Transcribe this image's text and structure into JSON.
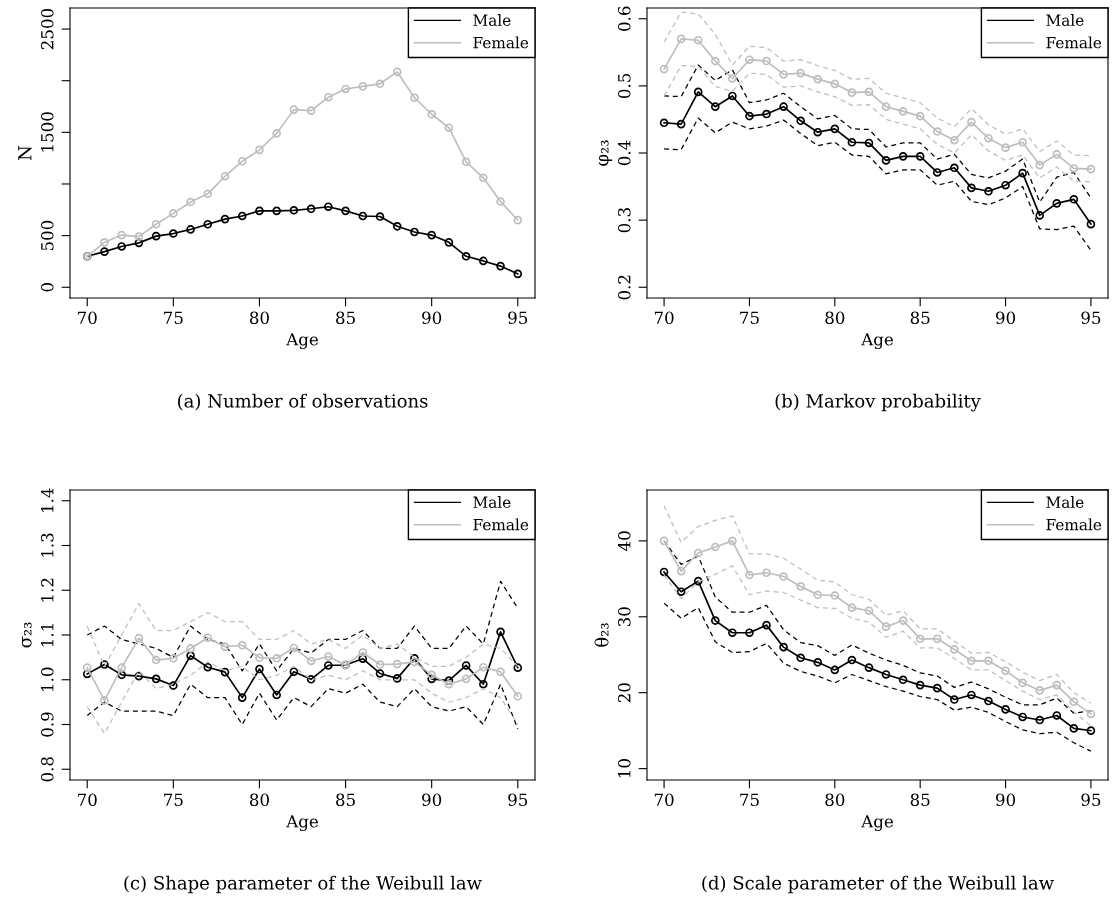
{
  "chart_data": [
    {
      "type": "line",
      "xlabel": "Age",
      "ylabel": "N",
      "annotations": [
        "(a) Number of observations"
      ],
      "x": [
        70,
        71,
        72,
        73,
        74,
        75,
        76,
        77,
        78,
        79,
        80,
        81,
        82,
        83,
        84,
        85,
        86,
        87,
        88,
        89,
        90,
        91,
        92,
        93,
        94,
        95
      ],
      "xlim": [
        69,
        96
      ],
      "xticks": [
        70,
        75,
        80,
        85,
        90,
        95
      ],
      "ylim": [
        -104,
        2704
      ],
      "yticks": [
        0,
        500,
        {
          "value": 1000,
          "label": null
        },
        1500,
        {
          "value": 2000,
          "label": null
        },
        2500
      ],
      "grid": false,
      "legend": "top right",
      "marker": "circle",
      "line_style": "solid",
      "series": [
        {
          "name": "Male",
          "color": "#000000",
          "values": [
            300,
            345,
            395,
            430,
            495,
            520,
            560,
            610,
            660,
            690,
            740,
            740,
            745,
            760,
            780,
            740,
            690,
            685,
            590,
            535,
            505,
            435,
            300,
            255,
            205,
            130
          ]
        },
        {
          "name": "Female",
          "color": "#bebebe",
          "values": [
            300,
            435,
            505,
            490,
            610,
            715,
            825,
            905,
            1075,
            1220,
            1330,
            1490,
            1720,
            1710,
            1840,
            1920,
            1945,
            1970,
            2085,
            1835,
            1675,
            1545,
            1215,
            1060,
            830,
            650
          ]
        }
      ]
    },
    {
      "type": "line",
      "xlabel": "Age",
      "ylabel": "φ₂₃",
      "annotations": [
        "(b) Markov probability"
      ],
      "x": [
        70,
        71,
        72,
        73,
        74,
        75,
        76,
        77,
        78,
        79,
        80,
        81,
        82,
        83,
        84,
        85,
        86,
        87,
        88,
        89,
        90,
        91,
        92,
        93,
        94,
        95
      ],
      "xlim": [
        69,
        96
      ],
      "xticks": [
        70,
        75,
        80,
        85,
        90,
        95
      ],
      "ylim": [
        0.184,
        0.616
      ],
      "yticks": [
        0.2,
        0.3,
        0.4,
        0.5,
        0.6
      ],
      "grid": false,
      "legend": "top right",
      "marker": "circle",
      "line_style": "solid",
      "series": [
        {
          "name": "Male",
          "color": "#000000",
          "values": [
            0.445,
            0.443,
            0.491,
            0.469,
            0.485,
            0.455,
            0.458,
            0.469,
            0.448,
            0.431,
            0.436,
            0.416,
            0.415,
            0.389,
            0.395,
            0.395,
            0.371,
            0.378,
            0.348,
            0.343,
            0.352,
            0.37,
            0.307,
            0.325,
            0.331,
            0.294
          ]
        },
        {
          "color": "#000000",
          "marker": "none",
          "line_style": "dashed",
          "values": [
            0.485,
            0.484,
            0.531,
            0.508,
            0.524,
            0.475,
            0.479,
            0.489,
            0.469,
            0.451,
            0.456,
            0.436,
            0.435,
            0.409,
            0.415,
            0.415,
            0.391,
            0.398,
            0.368,
            0.363,
            0.373,
            0.391,
            0.327,
            0.364,
            0.371,
            0.333
          ]
        },
        {
          "color": "#000000",
          "marker": "none",
          "line_style": "dashed",
          "values": [
            0.406,
            0.405,
            0.452,
            0.43,
            0.446,
            0.436,
            0.44,
            0.449,
            0.429,
            0.411,
            0.416,
            0.397,
            0.395,
            0.369,
            0.375,
            0.375,
            0.352,
            0.358,
            0.328,
            0.323,
            0.333,
            0.35,
            0.287,
            0.286,
            0.291,
            0.255
          ]
        },
        {
          "name": "Female",
          "color": "#bebebe",
          "values": [
            0.525,
            0.57,
            0.568,
            0.537,
            0.511,
            0.539,
            0.537,
            0.517,
            0.519,
            0.51,
            0.503,
            0.49,
            0.491,
            0.469,
            0.462,
            0.455,
            0.432,
            0.419,
            0.446,
            0.422,
            0.408,
            0.416,
            0.382,
            0.398,
            0.377,
            0.376
          ]
        },
        {
          "color": "#bebebe",
          "marker": "none",
          "line_style": "dashed",
          "values": [
            0.565,
            0.61,
            0.607,
            0.577,
            0.531,
            0.559,
            0.557,
            0.537,
            0.539,
            0.53,
            0.523,
            0.51,
            0.511,
            0.489,
            0.482,
            0.475,
            0.452,
            0.439,
            0.466,
            0.442,
            0.428,
            0.436,
            0.402,
            0.418,
            0.397,
            0.396
          ]
        },
        {
          "color": "#bebebe",
          "marker": "none",
          "line_style": "dashed",
          "values": [
            0.485,
            0.53,
            0.529,
            0.499,
            0.492,
            0.519,
            0.517,
            0.498,
            0.5,
            0.491,
            0.484,
            0.471,
            0.472,
            0.45,
            0.443,
            0.436,
            0.413,
            0.4,
            0.427,
            0.403,
            0.389,
            0.397,
            0.363,
            0.379,
            0.358,
            0.357
          ]
        }
      ]
    },
    {
      "type": "line",
      "xlabel": "Age",
      "ylabel": "σ₂₃",
      "annotations": [
        "(c) Shape parameter of the Weibull law"
      ],
      "x": [
        70,
        71,
        72,
        73,
        74,
        75,
        76,
        77,
        78,
        79,
        80,
        81,
        82,
        83,
        84,
        85,
        86,
        87,
        88,
        89,
        90,
        91,
        92,
        93,
        94,
        95
      ],
      "xlim": [
        69,
        96
      ],
      "xticks": [
        70,
        75,
        80,
        85,
        90,
        95
      ],
      "ylim": [
        0.776,
        1.424
      ],
      "yticks": [
        0.8,
        0.9,
        {
          "value": 1.0,
          "label": "1.0"
        },
        1.1,
        1.2,
        1.3,
        1.4
      ],
      "grid": false,
      "legend": "top right",
      "marker": "circle",
      "line_style": "solid",
      "series": [
        {
          "name": "Male",
          "color": "#000000",
          "values": [
            1.013,
            1.034,
            1.011,
            1.008,
            1.002,
            0.987,
            1.054,
            1.028,
            1.017,
            0.96,
            1.024,
            0.966,
            1.018,
            1.001,
            1.032,
            1.033,
            1.047,
            1.014,
            1.003,
            1.048,
            1.002,
            0.998,
            1.032,
            0.99,
            1.107,
            1.027
          ]
        },
        {
          "color": "#000000",
          "marker": "none",
          "line_style": "dashed",
          "values": [
            1.1,
            1.12,
            1.09,
            1.08,
            1.07,
            1.05,
            1.12,
            1.09,
            1.08,
            1.02,
            1.08,
            1.02,
            1.07,
            1.06,
            1.09,
            1.09,
            1.11,
            1.07,
            1.07,
            1.12,
            1.07,
            1.07,
            1.12,
            1.08,
            1.22,
            1.16
          ]
        },
        {
          "color": "#000000",
          "marker": "none",
          "line_style": "dashed",
          "values": [
            0.92,
            0.95,
            0.93,
            0.93,
            0.93,
            0.92,
            0.99,
            0.96,
            0.96,
            0.9,
            0.97,
            0.91,
            0.96,
            0.94,
            0.98,
            0.97,
            0.99,
            0.95,
            0.94,
            0.98,
            0.94,
            0.93,
            0.94,
            0.9,
            0.99,
            0.89
          ]
        },
        {
          "name": "Female",
          "color": "#bebebe",
          "values": [
            1.027,
            0.954,
            1.027,
            1.093,
            1.044,
            1.048,
            1.07,
            1.094,
            1.074,
            1.077,
            1.049,
            1.048,
            1.071,
            1.042,
            1.052,
            1.033,
            1.061,
            1.034,
            1.035,
            1.04,
            1.011,
            0.99,
            1.002,
            1.028,
            1.018,
            0.963
          ]
        },
        {
          "color": "#bebebe",
          "marker": "none",
          "line_style": "dashed",
          "values": [
            1.12,
            1.03,
            1.1,
            1.17,
            1.11,
            1.11,
            1.13,
            1.15,
            1.13,
            1.13,
            1.09,
            1.09,
            1.11,
            1.08,
            1.09,
            1.07,
            1.1,
            1.07,
            1.08,
            1.05,
            1.03,
            1.03,
            1.05,
            1.08,
            1.07,
            1.03
          ]
        },
        {
          "color": "#bebebe",
          "marker": "none",
          "line_style": "dashed",
          "values": [
            0.94,
            0.88,
            0.95,
            1.02,
            0.98,
            0.99,
            1.01,
            1.04,
            1.02,
            1.03,
            1.0,
            1.01,
            1.03,
            1.0,
            1.01,
            1.0,
            1.02,
            1.0,
            1.0,
            1.0,
            0.97,
            0.95,
            0.96,
            0.98,
            0.96,
            0.9
          ]
        }
      ]
    },
    {
      "type": "line",
      "xlabel": "Age",
      "ylabel": "θ₂₃",
      "annotations": [
        "(d) Scale parameter of the Weibull law"
      ],
      "x": [
        70,
        71,
        72,
        73,
        74,
        75,
        76,
        77,
        78,
        79,
        80,
        81,
        82,
        83,
        84,
        85,
        86,
        87,
        88,
        89,
        90,
        91,
        92,
        93,
        94,
        95
      ],
      "xlim": [
        69,
        96
      ],
      "xticks": [
        70,
        75,
        80,
        85,
        90,
        95
      ],
      "ylim": [
        8.5,
        46.7
      ],
      "yticks": [
        10,
        20,
        30,
        40
      ],
      "grid": false,
      "legend": "top right",
      "marker": "circle",
      "line_style": "solid",
      "series": [
        {
          "name": "Male",
          "color": "#000000",
          "values": [
            35.9,
            33.3,
            34.7,
            29.5,
            27.9,
            27.9,
            28.9,
            26.0,
            24.6,
            24.0,
            23.0,
            24.3,
            23.3,
            22.4,
            21.7,
            21.0,
            20.6,
            19.1,
            19.7,
            18.9,
            17.8,
            16.8,
            16.4,
            17.0,
            15.3,
            15.0
          ]
        },
        {
          "color": "#000000",
          "marker": "none",
          "line_style": "dashed",
          "values": [
            40.0,
            36.9,
            38.0,
            32.6,
            30.6,
            30.6,
            31.5,
            28.3,
            26.6,
            26.2,
            24.9,
            26.3,
            25.2,
            24.3,
            23.6,
            22.6,
            22.2,
            20.7,
            21.4,
            20.5,
            19.4,
            18.4,
            18.4,
            19.3,
            17.3,
            17.6
          ]
        },
        {
          "color": "#000000",
          "marker": "none",
          "line_style": "dashed",
          "values": [
            31.8,
            29.8,
            31.2,
            26.7,
            25.3,
            25.4,
            26.5,
            23.9,
            22.8,
            22.2,
            21.3,
            22.4,
            21.6,
            20.8,
            20.2,
            19.5,
            19.1,
            17.7,
            18.1,
            17.4,
            16.2,
            15.1,
            14.6,
            14.8,
            13.4,
            12.3
          ]
        },
        {
          "name": "Female",
          "color": "#bebebe",
          "values": [
            40.0,
            36.0,
            38.4,
            39.2,
            40.0,
            35.5,
            35.8,
            35.3,
            34.0,
            32.9,
            32.8,
            31.2,
            30.8,
            28.7,
            29.5,
            27.1,
            27.1,
            25.7,
            24.2,
            24.2,
            22.9,
            21.3,
            20.3,
            21.0,
            18.8,
            17.2
          ]
        },
        {
          "color": "#bebebe",
          "marker": "none",
          "line_style": "dashed",
          "values": [
            44.6,
            39.8,
            41.9,
            42.7,
            43.3,
            38.3,
            38.3,
            37.7,
            36.3,
            34.8,
            34.6,
            32.9,
            32.3,
            30.2,
            30.8,
            28.4,
            28.4,
            26.8,
            25.2,
            25.3,
            24.1,
            22.7,
            21.6,
            22.4,
            20.0,
            18.6
          ]
        },
        {
          "color": "#bebebe",
          "marker": "none",
          "line_style": "dashed",
          "values": [
            35.5,
            32.4,
            34.6,
            35.6,
            36.7,
            32.9,
            33.4,
            33.2,
            32.2,
            31.2,
            31.1,
            29.8,
            29.3,
            27.3,
            28.1,
            25.9,
            25.9,
            24.5,
            23.0,
            23.0,
            21.6,
            20.2,
            19.1,
            19.7,
            17.5,
            15.6
          ]
        }
      ]
    }
  ]
}
